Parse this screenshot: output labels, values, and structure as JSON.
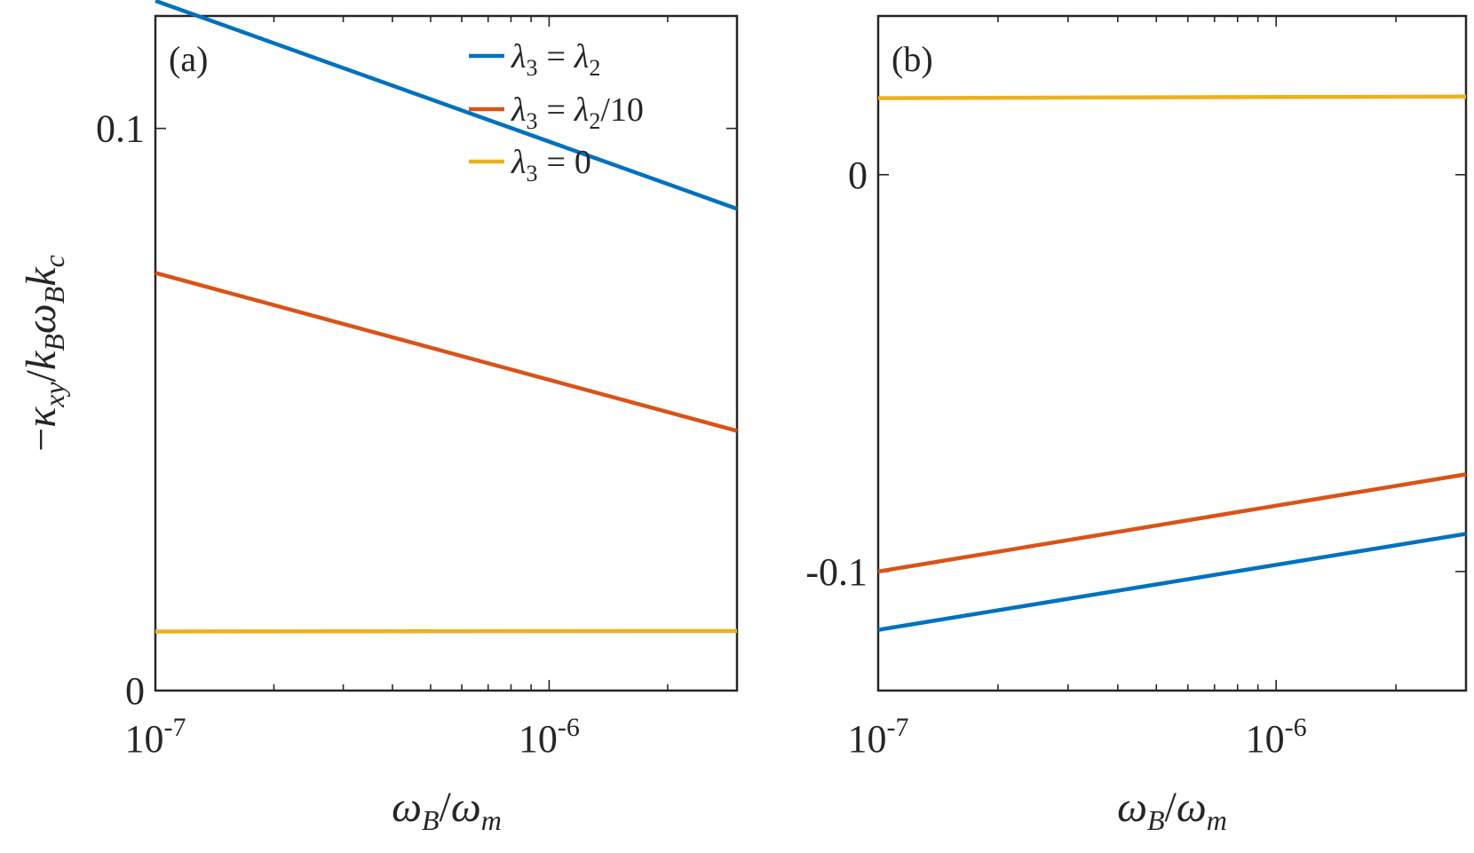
{
  "chart_data": [
    {
      "type": "line",
      "panel_label": "(a)",
      "xscale": "log",
      "xlim": [
        1e-07,
        3e-06
      ],
      "ylim": [
        0,
        0.12
      ],
      "xticks": [
        {
          "value": 1e-07,
          "base": "10",
          "exp": "-7"
        },
        {
          "value": 1e-06,
          "base": "10",
          "exp": "-6"
        }
      ],
      "yticks": [
        {
          "value": 0,
          "label": "0"
        },
        {
          "value": 0.1,
          "label": "0.1"
        }
      ],
      "xlabel": "ωB/ωm",
      "ylabel": "−κxy/kBωBkc",
      "legend_position": "top-right",
      "series": [
        {
          "name": "λ3 = λ2",
          "color": "#0072BD",
          "x": [
            1e-07,
            3e-06
          ],
          "y": [
            0.1227,
            0.0857
          ]
        },
        {
          "name": "λ3 = λ2/10",
          "color": "#D95319",
          "x": [
            1e-07,
            3e-06
          ],
          "y": [
            0.0743,
            0.0462
          ]
        },
        {
          "name": "λ3 = 0",
          "color": "#EDB120",
          "x": [
            1e-07,
            3e-06
          ],
          "y": [
            0.0105,
            0.0106
          ]
        }
      ]
    },
    {
      "type": "line",
      "panel_label": "(b)",
      "xscale": "log",
      "xlim": [
        1e-07,
        3e-06
      ],
      "ylim": [
        -0.13,
        0.04
      ],
      "xticks": [
        {
          "value": 1e-07,
          "base": "10",
          "exp": "-7"
        },
        {
          "value": 1e-06,
          "base": "10",
          "exp": "-6"
        }
      ],
      "yticks": [
        {
          "value": 0,
          "label": "0"
        },
        {
          "value": -0.1,
          "label": "-0.1"
        }
      ],
      "xlabel": "ωB/ωm",
      "ylabel": "",
      "series": [
        {
          "name": "λ3 = λ2",
          "color": "#0072BD",
          "x": [
            1e-07,
            3e-06
          ],
          "y": [
            -0.1147,
            -0.0905
          ]
        },
        {
          "name": "λ3 = λ2/10",
          "color": "#D95319",
          "x": [
            1e-07,
            3e-06
          ],
          "y": [
            -0.1,
            -0.0755
          ]
        },
        {
          "name": "λ3 = 0",
          "color": "#EDB120",
          "x": [
            1e-07,
            3e-06
          ],
          "y": [
            0.0193,
            0.0197
          ]
        }
      ]
    }
  ],
  "legend": {
    "entries": [
      {
        "lhs_sym": "λ",
        "lhs_sub": "3",
        "eq": "=",
        "rhs_sym": "λ",
        "rhs_sub": "2",
        "rhs_tail": "",
        "color": "#0072BD"
      },
      {
        "lhs_sym": "λ",
        "lhs_sub": "3",
        "eq": "=",
        "rhs_sym": "λ",
        "rhs_sub": "2",
        "rhs_tail": "/10",
        "color": "#D95319"
      },
      {
        "lhs_sym": "λ",
        "lhs_sub": "3",
        "eq": "=",
        "rhs_sym": "",
        "rhs_sub": "",
        "rhs_tail": "0",
        "color": "#EDB120"
      }
    ]
  },
  "ylabel_parts": {
    "minus": "−",
    "kappa": "κ",
    "kappa_sub": "xy",
    "slash": "/",
    "k": "k",
    "k_sub": "B",
    "omega": "ω",
    "omega_sub": "B",
    "k2": "k",
    "k2_sub": "c"
  },
  "xlabel_parts": {
    "omega": "ω",
    "sub1": "B",
    "slash": "/",
    "omega2": "ω",
    "sub2": "m"
  }
}
